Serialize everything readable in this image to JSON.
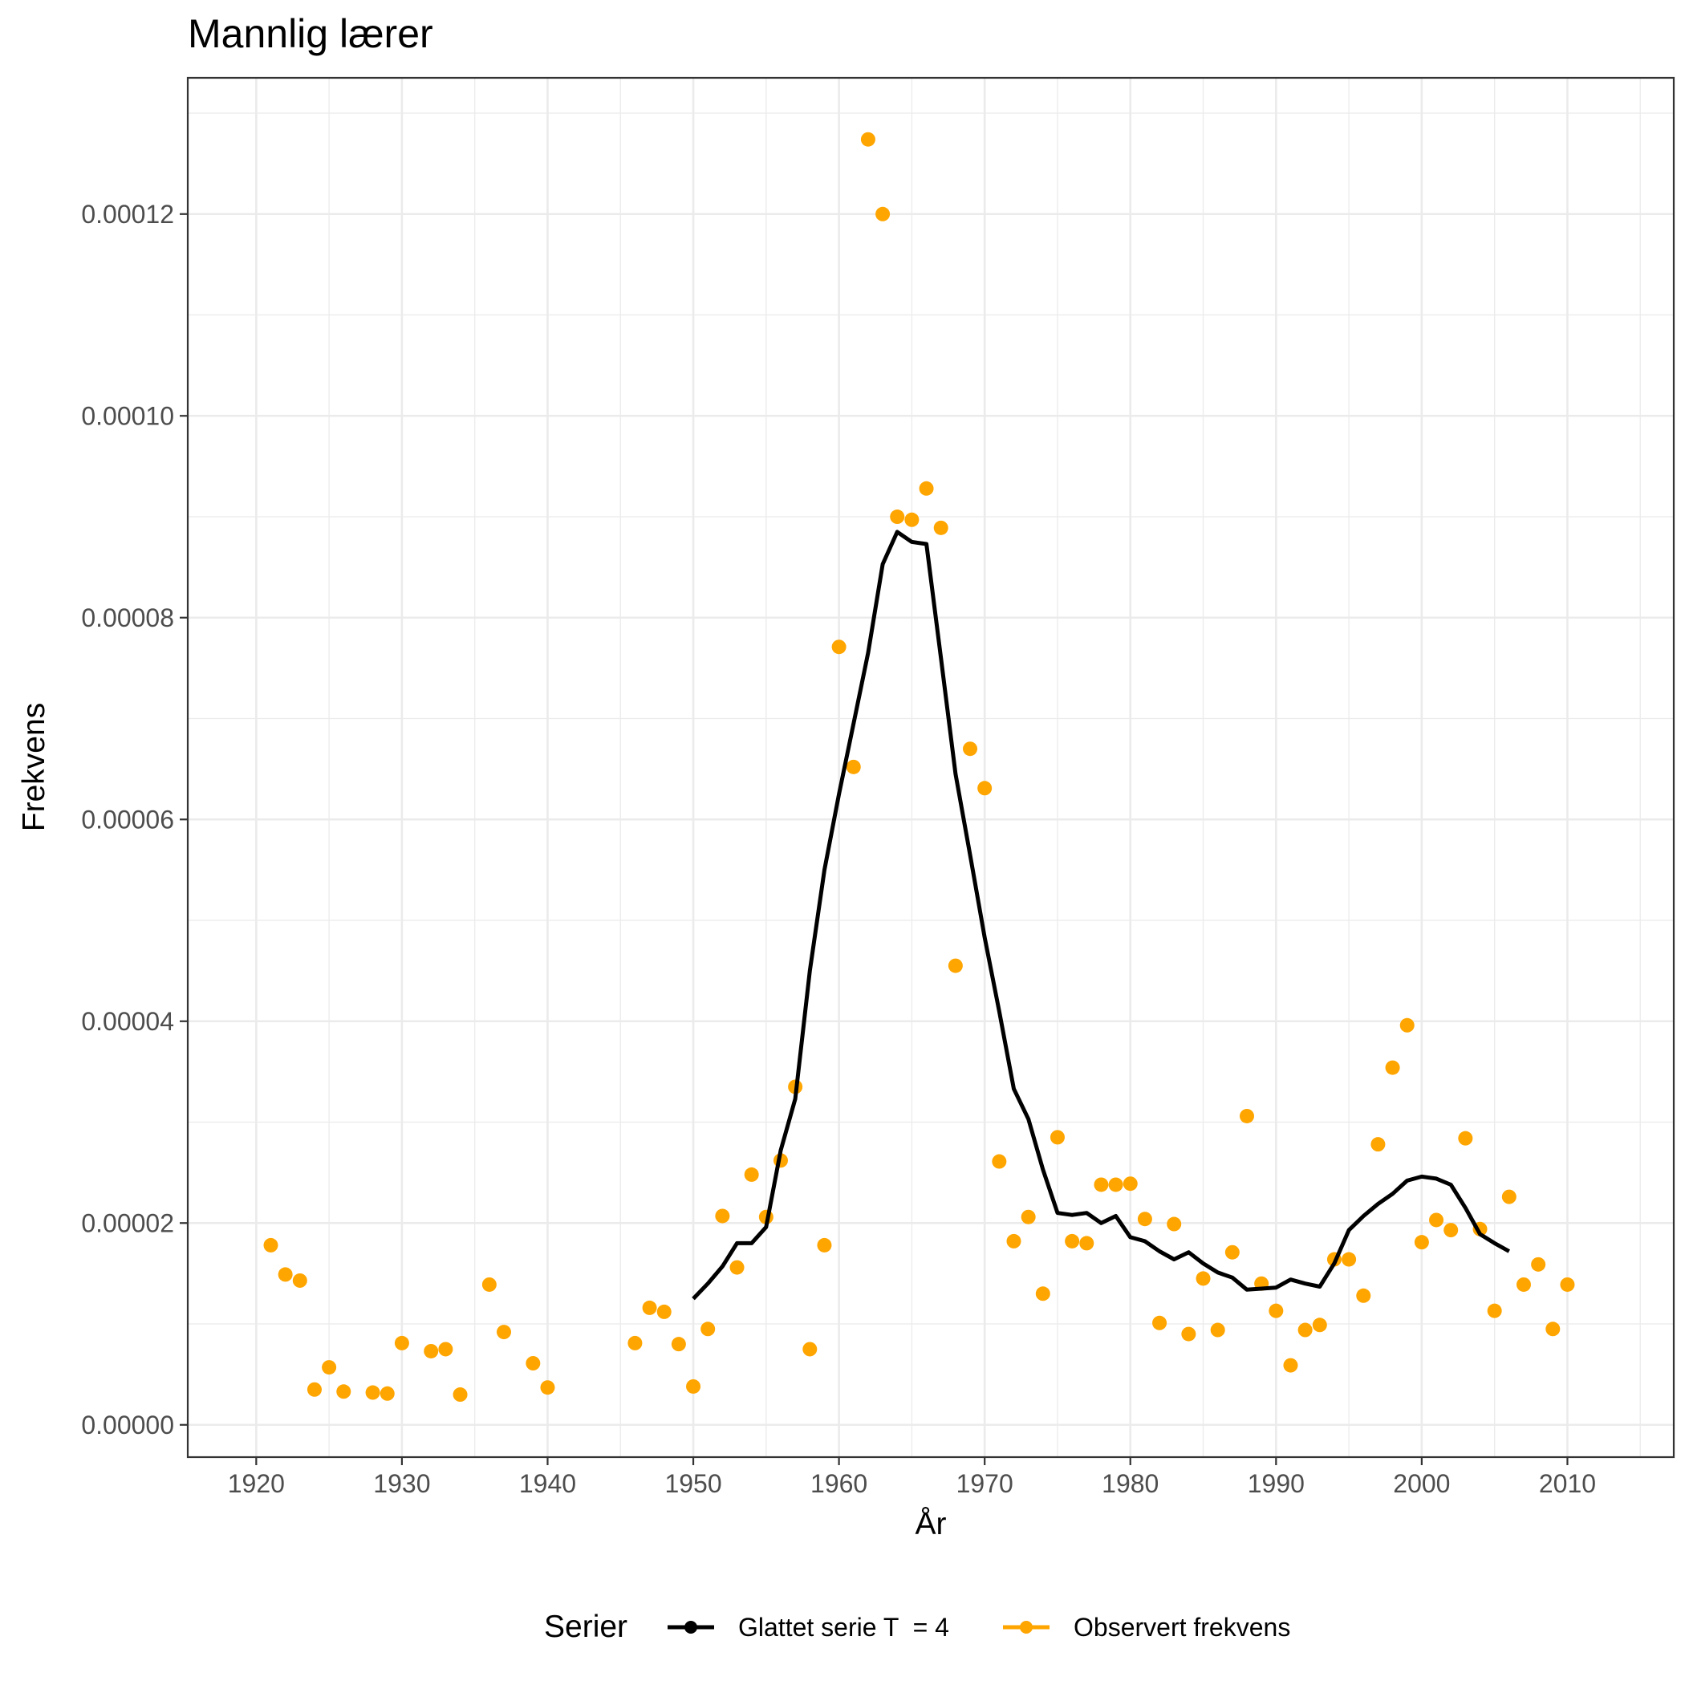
{
  "chart_data": {
    "type": "line",
    "title": "Mannlig lærer",
    "xlabel": "År",
    "ylabel": "Frekvens",
    "xlim": [
      1915.3,
      2017.3
    ],
    "ylim": [
      -3.2e-06,
      0.0001335
    ],
    "x_ticks": [
      1920,
      1930,
      1940,
      1950,
      1960,
      1970,
      1980,
      1990,
      2000,
      2010
    ],
    "x_tick_labels": [
      "1920",
      "1930",
      "1940",
      "1950",
      "1960",
      "1970",
      "1980",
      "1990",
      "2000",
      "2010"
    ],
    "y_ticks": [
      0,
      2e-05,
      4e-05,
      6e-05,
      8e-05,
      0.0001,
      0.00012
    ],
    "y_tick_labels": [
      "0.00000",
      "0.00002",
      "0.00004",
      "0.00006",
      "0.00008",
      "0.00010",
      "0.00012"
    ],
    "grid": true,
    "legend_position": "bottom",
    "legend_title": "Serier",
    "series": [
      {
        "name": "Glattet serie T  = 4",
        "type": "line",
        "color": "#000000",
        "x": [
          1950,
          1951,
          1952,
          1953,
          1954,
          1955,
          1956,
          1957,
          1958,
          1959,
          1960,
          1961,
          1962,
          1963,
          1964,
          1965,
          1966,
          1967,
          1968,
          1969,
          1970,
          1971,
          1972,
          1973,
          1974,
          1975,
          1976,
          1977,
          1978,
          1979,
          1980,
          1981,
          1982,
          1983,
          1984,
          1985,
          1986,
          1987,
          1988,
          1989,
          1990,
          1991,
          1992,
          1993,
          1994,
          1995,
          1996,
          1997,
          1998,
          1999,
          2000,
          2001,
          2002,
          2003,
          2004,
          2005,
          2006
        ],
        "y": [
          1.25e-05,
          1.4e-05,
          1.57e-05,
          1.8e-05,
          1.8e-05,
          1.96e-05,
          2.72e-05,
          3.23e-05,
          4.5e-05,
          5.5e-05,
          6.25e-05,
          6.95e-05,
          7.65e-05,
          8.53e-05,
          8.85e-05,
          8.75e-05,
          8.73e-05,
          7.6e-05,
          6.45e-05,
          5.65e-05,
          4.83e-05,
          4.1e-05,
          3.33e-05,
          3.03e-05,
          2.53e-05,
          2.1e-05,
          2.08e-05,
          2.1e-05,
          2e-05,
          2.07e-05,
          1.86e-05,
          1.82e-05,
          1.72e-05,
          1.64e-05,
          1.71e-05,
          1.6e-05,
          1.51e-05,
          1.46e-05,
          1.34e-05,
          1.35e-05,
          1.36e-05,
          1.44e-05,
          1.4e-05,
          1.37e-05,
          1.6e-05,
          1.93e-05,
          2.07e-05,
          2.19e-05,
          2.29e-05,
          2.42e-05,
          2.46e-05,
          2.44e-05,
          2.38e-05,
          2.15e-05,
          1.89e-05,
          1.8e-05,
          1.72e-05
        ]
      },
      {
        "name": "Observert frekvens",
        "type": "scatter",
        "color": "#ffa500",
        "x": [
          1921,
          1922,
          1923,
          1924,
          1925,
          1926,
          1928,
          1929,
          1930,
          1932,
          1933,
          1934,
          1936,
          1937,
          1939,
          1940,
          1946,
          1947,
          1948,
          1949,
          1950,
          1951,
          1952,
          1953,
          1954,
          1955,
          1956,
          1957,
          1958,
          1959,
          1960,
          1961,
          1962,
          1963,
          1964,
          1965,
          1966,
          1967,
          1968,
          1969,
          1970,
          1971,
          1972,
          1973,
          1974,
          1975,
          1976,
          1977,
          1978,
          1979,
          1980,
          1981,
          1982,
          1983,
          1984,
          1985,
          1986,
          1987,
          1988,
          1989,
          1990,
          1991,
          1992,
          1993,
          1994,
          1995,
          1996,
          1997,
          1998,
          1999,
          2000,
          2001,
          2002,
          2003,
          2004,
          2005,
          2006,
          2007,
          2008,
          2009,
          2010
        ],
        "y": [
          1.78e-05,
          1.49e-05,
          1.43e-05,
          3.5e-06,
          5.7e-06,
          3.3e-06,
          3.2e-06,
          3.1e-06,
          8.1e-06,
          7.3e-06,
          7.5e-06,
          3e-06,
          1.39e-05,
          9.2e-06,
          6.1e-06,
          3.7e-06,
          8.1e-06,
          1.16e-05,
          1.12e-05,
          8e-06,
          3.8e-06,
          9.5e-06,
          2.07e-05,
          1.56e-05,
          2.48e-05,
          2.06e-05,
          2.62e-05,
          3.35e-05,
          7.5e-06,
          1.78e-05,
          7.71e-05,
          6.52e-05,
          0.0001274,
          0.00012,
          9e-05,
          8.97e-05,
          9.28e-05,
          8.89e-05,
          4.55e-05,
          6.7e-05,
          6.31e-05,
          2.61e-05,
          1.82e-05,
          2.06e-05,
          1.3e-05,
          2.85e-05,
          1.82e-05,
          1.8e-05,
          2.38e-05,
          2.38e-05,
          2.39e-05,
          2.04e-05,
          1.01e-05,
          1.99e-05,
          9e-06,
          1.45e-05,
          9.4e-06,
          1.71e-05,
          3.06e-05,
          1.4e-05,
          1.13e-05,
          5.9e-06,
          9.4e-06,
          9.9e-06,
          1.64e-05,
          1.64e-05,
          1.28e-05,
          2.78e-05,
          3.54e-05,
          3.96e-05,
          1.81e-05,
          2.03e-05,
          1.93e-05,
          2.84e-05,
          1.94e-05,
          1.13e-05,
          2.26e-05,
          1.39e-05,
          1.59e-05,
          9.5e-06,
          1.39e-05
        ]
      }
    ]
  }
}
